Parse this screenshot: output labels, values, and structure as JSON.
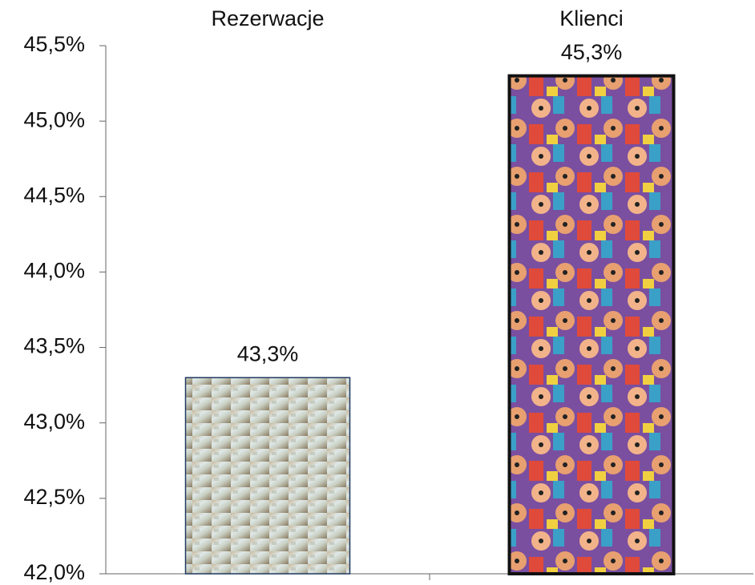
{
  "chart_data": {
    "type": "bar",
    "categories": [
      "Rezerwacje",
      "Klienci"
    ],
    "values": [
      43.3,
      45.3
    ],
    "value_labels": [
      "43,3%",
      "45,3%"
    ],
    "ylim": [
      42,
      45.5
    ],
    "yticks": [
      {
        "value": 42,
        "label": "42,0%"
      },
      {
        "value": 42.5,
        "label": "42,5%"
      },
      {
        "value": 43,
        "label": "43,0%"
      },
      {
        "value": 43.5,
        "label": "43,5%"
      },
      {
        "value": 44,
        "label": "44,0%"
      },
      {
        "value": 44.5,
        "label": "44,5%"
      },
      {
        "value": 45,
        "label": "45,0%"
      },
      {
        "value": 45.5,
        "label": "45,5%"
      }
    ]
  }
}
